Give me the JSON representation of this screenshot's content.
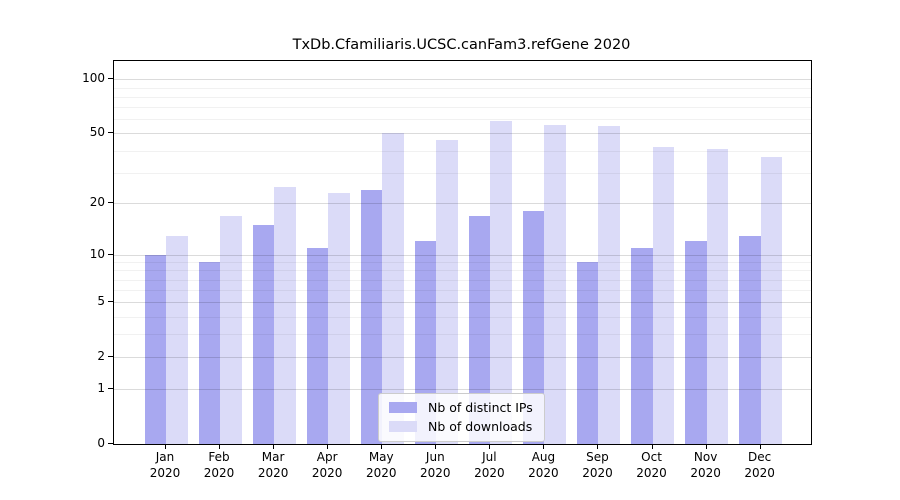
{
  "chart_data": {
    "type": "bar",
    "title": "TxDb.Cfamiliaris.UCSC.canFam3.refGene 2020",
    "year": "2020",
    "categories": [
      "Jan",
      "Feb",
      "Mar",
      "Apr",
      "May",
      "Jun",
      "Jul",
      "Aug",
      "Sep",
      "Oct",
      "Nov",
      "Dec"
    ],
    "series": [
      {
        "name": "Nb of distinct IPs",
        "color": "#a8a8f0",
        "values": [
          10,
          9,
          15,
          11,
          24,
          12,
          17,
          18,
          9,
          11,
          12,
          13
        ]
      },
      {
        "name": "Nb of downloads",
        "color": "#dbdbf8",
        "values": [
          13,
          17,
          25,
          23,
          50,
          46,
          59,
          56,
          55,
          42,
          41,
          37
        ]
      }
    ],
    "xlabel": "",
    "ylabel": "",
    "y_scale": "log1p",
    "y_ticks": [
      0,
      1,
      2,
      5,
      10,
      20,
      50,
      100
    ],
    "y_minor_ticks": [
      3,
      4,
      6,
      7,
      8,
      9,
      30,
      40,
      60,
      70,
      80,
      90
    ],
    "ylim": [
      0,
      127
    ],
    "grid": "horizontal",
    "legend_position": "lower-center-inside",
    "colors": {
      "axis": "#000000",
      "major_grid": "rgba(0,0,0,0.14)",
      "minor_grid": "rgba(0,0,0,0.055)",
      "background": "#ffffff"
    }
  }
}
